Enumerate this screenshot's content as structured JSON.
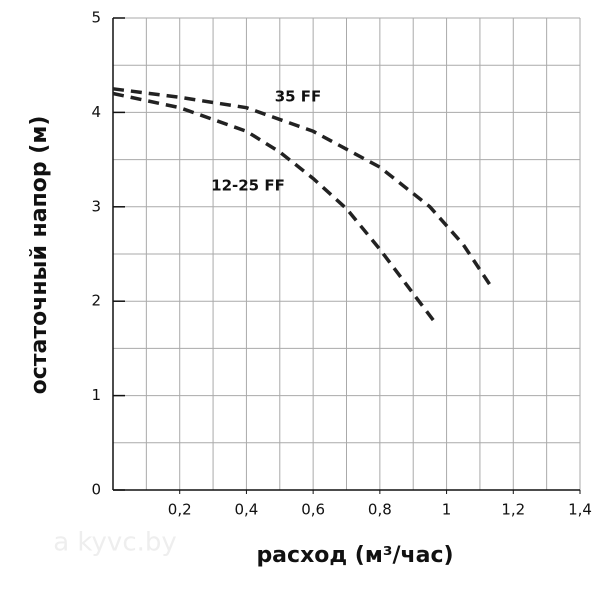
{
  "chart_data": {
    "type": "line",
    "x_label": "расход (м³/час)",
    "y_label": "остаточный напор (м)",
    "watermark": "a kyvc.by",
    "xlim": [
      0,
      1.4
    ],
    "ylim": [
      0,
      5
    ],
    "xticks": [
      {
        "value": 0.2,
        "label": "0,2"
      },
      {
        "value": 0.4,
        "label": "0,4"
      },
      {
        "value": 0.6,
        "label": "0,6"
      },
      {
        "value": 0.8,
        "label": "0,8"
      },
      {
        "value": 1,
        "label": "1"
      },
      {
        "value": 1.2,
        "label": "1,2"
      },
      {
        "value": 1.4,
        "label": "1,4"
      }
    ],
    "yticks": [
      0,
      1,
      2,
      3,
      4,
      5
    ],
    "xgrid": [
      0.1,
      0.2,
      0.3,
      0.4,
      0.5,
      0.6,
      0.7,
      0.8,
      0.9,
      1,
      1.1,
      1.2,
      1.3,
      1.4
    ],
    "ygrid": [
      0.5,
      1,
      1.5,
      2,
      2.5,
      3,
      3.5,
      4,
      4.5,
      5
    ],
    "series": [
      {
        "name": "35 FF",
        "color": "#222222",
        "dashed": true,
        "x": [
          0,
          0.2,
          0.4,
          0.6,
          0.8,
          0.95,
          1.05,
          1.14
        ],
        "values": [
          4.25,
          4.16,
          4.05,
          3.8,
          3.42,
          3.0,
          2.6,
          2.12
        ]
      },
      {
        "name": "12-25 FF",
        "color": "#222222",
        "dashed": true,
        "x": [
          0,
          0.2,
          0.4,
          0.5,
          0.6,
          0.7,
          0.8,
          0.9,
          0.96
        ],
        "values": [
          4.2,
          4.05,
          3.8,
          3.58,
          3.3,
          2.98,
          2.55,
          2.08,
          1.8
        ]
      }
    ]
  }
}
